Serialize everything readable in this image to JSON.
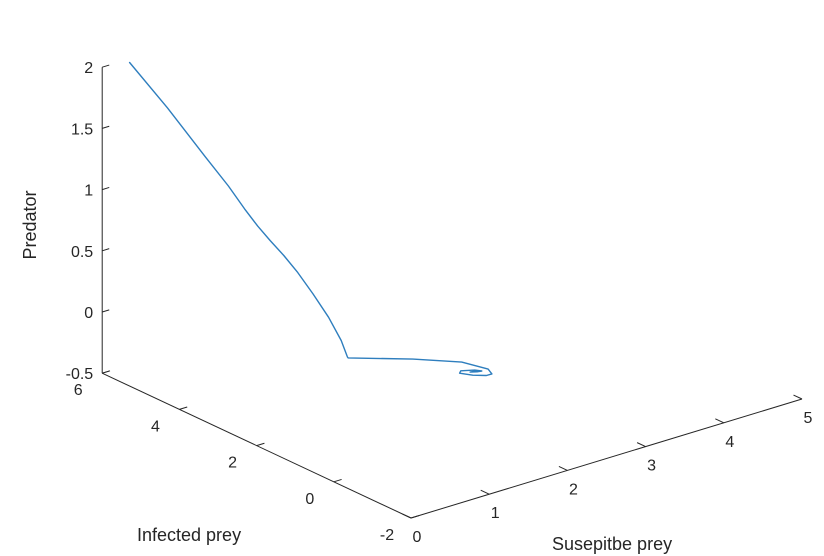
{
  "chart_data": {
    "type": "line",
    "projection": "3d",
    "title": "",
    "xlabel": "Susepitbe prey",
    "ylabel": "Infected prey",
    "zlabel": "Predator",
    "xlim": [
      0,
      5
    ],
    "ylim": [
      -2,
      6
    ],
    "zlim": [
      -0.5,
      2
    ],
    "xticks": [
      "0",
      "1",
      "2",
      "3",
      "4",
      "5"
    ],
    "yticks": [
      "-2",
      "0",
      "2",
      "4",
      "6"
    ],
    "zticks": [
      "-0.5",
      "0",
      "0.5",
      "1",
      "1.5",
      "2"
    ],
    "grid": false,
    "legend": false,
    "colors": {
      "line": "#2E7EBE",
      "axis": "#262626",
      "background": "#ffffff"
    },
    "series": [
      {
        "points": [
          [
            0.35,
            6.0,
            1.97
          ],
          [
            0.34,
            5.0,
            1.75
          ],
          [
            0.33,
            4.0,
            1.5
          ],
          [
            0.33,
            3.4,
            1.35
          ],
          [
            0.34,
            3.0,
            1.22
          ],
          [
            0.36,
            2.7,
            1.12
          ],
          [
            0.42,
            2.5,
            1.02
          ],
          [
            0.52,
            2.35,
            0.9
          ],
          [
            0.65,
            2.25,
            0.75
          ],
          [
            0.82,
            2.2,
            0.55
          ],
          [
            1.02,
            2.2,
            0.32
          ],
          [
            1.18,
            2.2,
            0.1
          ],
          [
            1.26,
            2.2,
            -0.05
          ],
          [
            1.27,
            2.2,
            -0.06
          ],
          [
            1.75,
            1.5,
            -0.06
          ],
          [
            2.08,
            0.9,
            -0.06
          ],
          [
            2.17,
            0.4,
            -0.06
          ],
          [
            2.12,
            0.2,
            -0.06
          ],
          [
            2.05,
            0.2,
            -0.06
          ],
          [
            1.95,
            0.35,
            -0.06
          ],
          [
            1.88,
            0.55,
            -0.06
          ],
          [
            1.93,
            0.62,
            -0.06
          ],
          [
            2.05,
            0.5,
            -0.06
          ],
          [
            2.09,
            0.4,
            -0.06
          ],
          [
            2.04,
            0.42,
            -0.06
          ],
          [
            1.98,
            0.48,
            -0.06
          ],
          [
            2.02,
            0.47,
            -0.06
          ],
          [
            2.05,
            0.44,
            -0.06
          ],
          [
            2.02,
            0.45,
            -0.06
          ]
        ]
      }
    ]
  }
}
